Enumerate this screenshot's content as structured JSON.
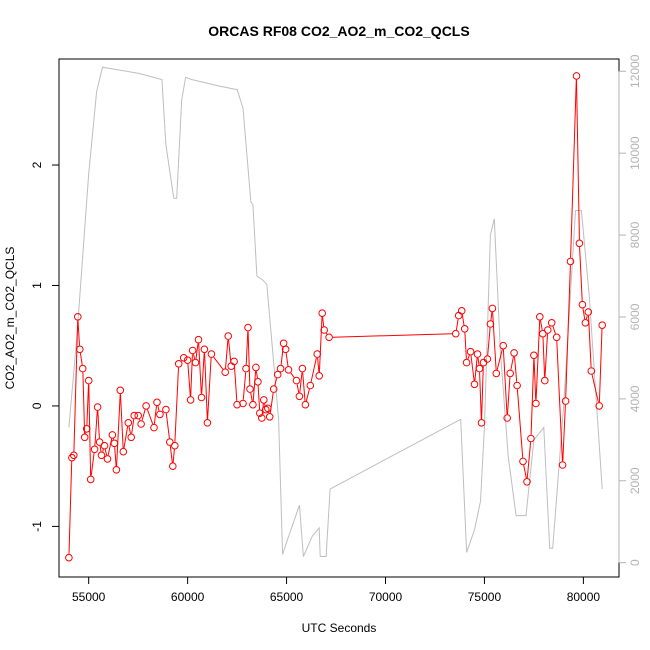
{
  "chart_data": {
    "type": "line",
    "title": "ORCAS RF08 CO2_AO2_m_CO2_QCLS",
    "xlabel": "UTC Seconds",
    "ylabel": "CO2_AO2_m_CO2_QCLS",
    "xlim": [
      53500,
      81800
    ],
    "ylim": [
      -1.42,
      2.88
    ],
    "y2lim": [
      -350,
      12300
    ],
    "x_ticks": [
      55000,
      60000,
      65000,
      70000,
      75000,
      80000
    ],
    "y_ticks": [
      -1,
      0,
      1,
      2
    ],
    "y2_ticks": [
      0,
      2000,
      4000,
      6000,
      8000,
      10000,
      12000
    ],
    "colors": {
      "primary": "#ff0000",
      "secondary": "#bebebe",
      "axis": "#000000",
      "axis2": "#b3b3b3"
    },
    "series": [
      {
        "marker": "circle",
        "points": [
          [
            54000,
            -1.26
          ],
          [
            54150,
            -0.43
          ],
          [
            54250,
            -0.41
          ],
          [
            54450,
            0.74
          ],
          [
            54550,
            0.47
          ],
          [
            54700,
            0.31
          ],
          [
            54800,
            -0.26
          ],
          [
            54900,
            -0.19
          ],
          [
            55000,
            0.21
          ],
          [
            55100,
            -0.61
          ],
          [
            55300,
            -0.36
          ],
          [
            55450,
            -0.01
          ],
          [
            55550,
            -0.3
          ],
          [
            55650,
            -0.41
          ],
          [
            55800,
            -0.33
          ],
          [
            55950,
            -0.44
          ],
          [
            56200,
            -0.24
          ],
          [
            56300,
            -0.31
          ],
          [
            56400,
            -0.53
          ],
          [
            56600,
            0.13
          ],
          [
            56750,
            -0.38
          ],
          [
            57000,
            -0.14
          ],
          [
            57150,
            -0.26
          ],
          [
            57300,
            -0.08
          ],
          [
            57500,
            -0.08
          ],
          [
            57650,
            -0.15
          ],
          [
            57900,
            0.0
          ],
          [
            58300,
            -0.18
          ],
          [
            58450,
            0.03
          ],
          [
            58600,
            -0.07
          ],
          [
            58900,
            -0.03
          ],
          [
            59100,
            -0.3
          ],
          [
            59250,
            -0.5
          ],
          [
            59350,
            -0.33
          ],
          [
            59550,
            0.35
          ],
          [
            59800,
            0.4
          ],
          [
            60000,
            0.38
          ],
          [
            60150,
            0.05
          ],
          [
            60250,
            0.46
          ],
          [
            60400,
            0.36
          ],
          [
            60550,
            0.55
          ],
          [
            60700,
            0.07
          ],
          [
            60850,
            0.47
          ],
          [
            61000,
            -0.14
          ],
          [
            61200,
            0.43
          ],
          [
            61900,
            0.28
          ],
          [
            62050,
            0.58
          ],
          [
            62200,
            0.33
          ],
          [
            62350,
            0.37
          ],
          [
            62500,
            0.01
          ],
          [
            62800,
            0.02
          ],
          [
            62950,
            0.31
          ],
          [
            63050,
            0.65
          ],
          [
            63150,
            0.14
          ],
          [
            63300,
            0.01
          ],
          [
            63450,
            0.32
          ],
          [
            63550,
            0.2
          ],
          [
            63650,
            -0.06
          ],
          [
            63750,
            -0.1
          ],
          [
            63850,
            0.05
          ],
          [
            63950,
            -0.03
          ],
          [
            64050,
            -0.02
          ],
          [
            64150,
            -0.09
          ],
          [
            64350,
            0.14
          ],
          [
            64550,
            0.26
          ],
          [
            64700,
            0.31
          ],
          [
            64850,
            0.52
          ],
          [
            64950,
            0.47
          ],
          [
            65100,
            0.3
          ],
          [
            65500,
            0.21
          ],
          [
            65650,
            0.08
          ],
          [
            65800,
            0.31
          ],
          [
            65950,
            0.01
          ],
          [
            66200,
            0.17
          ],
          [
            66550,
            0.43
          ],
          [
            66650,
            0.25
          ],
          [
            66800,
            0.77
          ],
          [
            66900,
            0.63
          ],
          [
            67150,
            0.57
          ],
          [
            73550,
            0.6
          ],
          [
            73700,
            0.75
          ],
          [
            73850,
            0.79
          ],
          [
            74000,
            0.64
          ],
          [
            74100,
            0.36
          ],
          [
            74300,
            0.45
          ],
          [
            74500,
            0.18
          ],
          [
            74650,
            0.43
          ],
          [
            74750,
            0.31
          ],
          [
            74850,
            -0.14
          ],
          [
            74950,
            0.36
          ],
          [
            75150,
            0.39
          ],
          [
            75300,
            0.68
          ],
          [
            75400,
            0.81
          ],
          [
            75600,
            0.27
          ],
          [
            75950,
            0.5
          ],
          [
            76150,
            -0.1
          ],
          [
            76300,
            0.27
          ],
          [
            76500,
            0.44
          ],
          [
            76650,
            0.17
          ],
          [
            76950,
            -0.46
          ],
          [
            77150,
            -0.63
          ],
          [
            77350,
            -0.27
          ],
          [
            77500,
            0.42
          ],
          [
            77600,
            0.02
          ],
          [
            77800,
            0.74
          ],
          [
            77950,
            0.6
          ],
          [
            78050,
            0.21
          ],
          [
            78200,
            0.63
          ],
          [
            78400,
            0.69
          ],
          [
            78650,
            0.57
          ],
          [
            78950,
            -0.49
          ],
          [
            79100,
            0.04
          ],
          [
            79350,
            1.2
          ],
          [
            79650,
            2.74
          ],
          [
            79800,
            1.35
          ],
          [
            79950,
            0.84
          ],
          [
            80100,
            0.69
          ],
          [
            80250,
            0.78
          ],
          [
            80400,
            0.29
          ],
          [
            80800,
            0.0
          ],
          [
            80950,
            0.67
          ]
        ]
      },
      {
        "axis": "right",
        "points": [
          [
            54000,
            3300
          ],
          [
            54400,
            5500
          ],
          [
            55000,
            9500
          ],
          [
            55400,
            11500
          ],
          [
            55700,
            12100
          ],
          [
            56300,
            12050
          ],
          [
            57500,
            11950
          ],
          [
            58700,
            11800
          ],
          [
            58900,
            10200
          ],
          [
            59300,
            8900
          ],
          [
            59450,
            8900
          ],
          [
            59700,
            11300
          ],
          [
            59900,
            11850
          ],
          [
            60200,
            11800
          ],
          [
            61500,
            11650
          ],
          [
            62500,
            11550
          ],
          [
            62800,
            11100
          ],
          [
            63200,
            8800
          ],
          [
            63300,
            8750
          ],
          [
            63500,
            7000
          ],
          [
            63800,
            6900
          ],
          [
            64000,
            6800
          ],
          [
            64600,
            3500
          ],
          [
            64800,
            200
          ],
          [
            65000,
            500
          ],
          [
            65650,
            1400
          ],
          [
            65700,
            1100
          ],
          [
            65850,
            150
          ],
          [
            66300,
            650
          ],
          [
            66650,
            850
          ],
          [
            66700,
            150
          ],
          [
            67000,
            150
          ],
          [
            67200,
            1800
          ],
          [
            73800,
            3500
          ],
          [
            74000,
            1300
          ],
          [
            74100,
            250
          ],
          [
            74500,
            800
          ],
          [
            74800,
            1500
          ],
          [
            75000,
            3300
          ],
          [
            75300,
            8000
          ],
          [
            75500,
            8400
          ],
          [
            75800,
            5200
          ],
          [
            76200,
            2600
          ],
          [
            76600,
            1150
          ],
          [
            77100,
            1150
          ],
          [
            77500,
            3000
          ],
          [
            78000,
            3300
          ],
          [
            78300,
            350
          ],
          [
            78450,
            350
          ],
          [
            79000,
            3800
          ],
          [
            79600,
            8600
          ],
          [
            79900,
            8600
          ],
          [
            80300,
            6500
          ],
          [
            80950,
            1800
          ]
        ]
      }
    ]
  }
}
